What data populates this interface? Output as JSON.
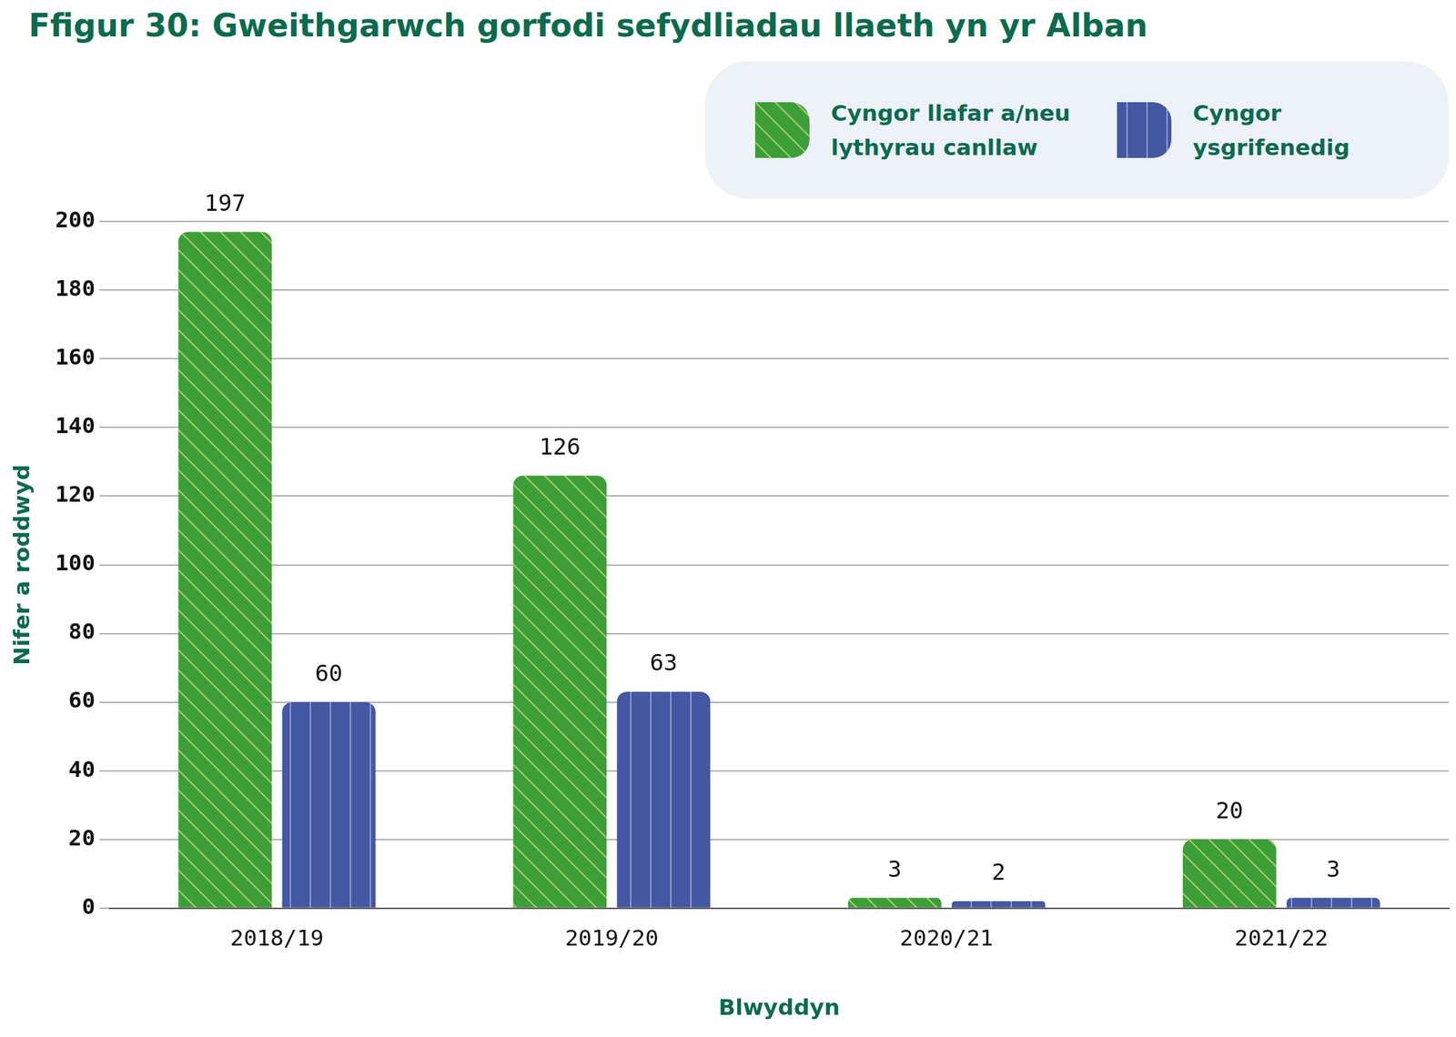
{
  "chart_data": {
    "type": "bar",
    "title": "Ffigur 30: Gweithgarwch gorfodi sefydliadau llaeth yn yr Alban",
    "x_label": "Blwyddyn",
    "y_label": "Nifer a roddwyd",
    "categories": [
      "2018/19",
      "2019/20",
      "2020/21",
      "2021/22"
    ],
    "series": [
      {
        "name": "Cyngor llafar a/neu lythyrau canllaw",
        "color": "#3c9e38",
        "values": [
          197,
          126,
          3,
          20
        ]
      },
      {
        "name": "Cyngor ysgrifenedig",
        "color": "#4357a2",
        "values": [
          60,
          63,
          2,
          3
        ]
      }
    ],
    "ylim": [
      0,
      200
    ],
    "yticks": [
      0,
      20,
      40,
      60,
      80,
      100,
      120,
      140,
      160,
      180,
      200
    ],
    "grid": true,
    "legend": "upper right",
    "data_labels": true
  }
}
